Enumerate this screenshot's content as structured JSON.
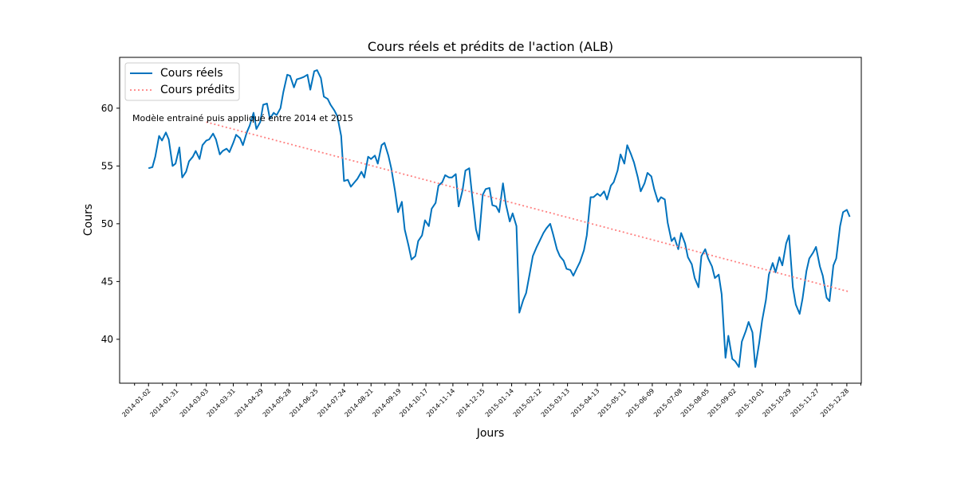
{
  "chart_data": {
    "type": "line",
    "title": "Cours réels et prédits de l'action (ALB)",
    "xlabel": "Jours",
    "ylabel": "Cours",
    "ylim": [
      36.2,
      64.4
    ],
    "yticks": [
      40,
      45,
      50,
      55,
      60
    ],
    "grid": false,
    "legend_position": "top-left",
    "annotation": "Modèle entrainé puis appliqué entre 2014 et 2015",
    "xtick_labels": [
      "2014-01-02",
      "2014-01-31",
      "2014-03-03",
      "2014-03-31",
      "2014-04-29",
      "2014-05-28",
      "2014-06-25",
      "2014-07-24",
      "2014-08-21",
      "2014-09-19",
      "2014-10-17",
      "2014-11-14",
      "2014-12-15",
      "2015-01-14",
      "2015-02-12",
      "2015-03-13",
      "2015-04-13",
      "2015-05-11",
      "2015-06-09",
      "2015-07-08",
      "2015-08-05",
      "2015-09-02",
      "2015-10-01",
      "2015-10-29",
      "2015-11-27",
      "2015-12-28"
    ],
    "series": [
      {
        "name": "Cours réels",
        "color": "#0072bd",
        "style": "solid",
        "points": [
          [
            "2014-01-02",
            54.8
          ],
          [
            "2014-01-06",
            54.9
          ],
          [
            "2014-01-09",
            55.8
          ],
          [
            "2014-01-13",
            57.6
          ],
          [
            "2014-01-16",
            57.2
          ],
          [
            "2014-01-20",
            57.9
          ],
          [
            "2014-01-23",
            57.3
          ],
          [
            "2014-01-27",
            55.0
          ],
          [
            "2014-01-30",
            55.2
          ],
          [
            "2014-02-03",
            56.6
          ],
          [
            "2014-02-06",
            54.0
          ],
          [
            "2014-02-10",
            54.5
          ],
          [
            "2014-02-13",
            55.4
          ],
          [
            "2014-02-17",
            55.8
          ],
          [
            "2014-02-20",
            56.3
          ],
          [
            "2014-02-24",
            55.6
          ],
          [
            "2014-02-27",
            56.8
          ],
          [
            "2014-03-03",
            57.2
          ],
          [
            "2014-03-06",
            57.3
          ],
          [
            "2014-03-10",
            57.8
          ],
          [
            "2014-03-13",
            57.3
          ],
          [
            "2014-03-17",
            56.0
          ],
          [
            "2014-03-20",
            56.3
          ],
          [
            "2014-03-24",
            56.5
          ],
          [
            "2014-03-27",
            56.2
          ],
          [
            "2014-03-31",
            57.0
          ],
          [
            "2014-04-03",
            57.7
          ],
          [
            "2014-04-07",
            57.4
          ],
          [
            "2014-04-10",
            56.8
          ],
          [
            "2014-04-14",
            57.9
          ],
          [
            "2014-04-17",
            58.5
          ],
          [
            "2014-04-21",
            59.6
          ],
          [
            "2014-04-24",
            58.2
          ],
          [
            "2014-04-28",
            58.8
          ],
          [
            "2014-05-01",
            60.3
          ],
          [
            "2014-05-05",
            60.4
          ],
          [
            "2014-05-08",
            59.1
          ],
          [
            "2014-05-12",
            59.6
          ],
          [
            "2014-05-15",
            59.4
          ],
          [
            "2014-05-19",
            60.0
          ],
          [
            "2014-05-22",
            61.4
          ],
          [
            "2014-05-26",
            62.9
          ],
          [
            "2014-05-29",
            62.8
          ],
          [
            "2014-06-02",
            61.8
          ],
          [
            "2014-06-05",
            62.5
          ],
          [
            "2014-06-09",
            62.6
          ],
          [
            "2014-06-12",
            62.7
          ],
          [
            "2014-06-16",
            62.9
          ],
          [
            "2014-06-19",
            61.6
          ],
          [
            "2014-06-23",
            63.2
          ],
          [
            "2014-06-26",
            63.3
          ],
          [
            "2014-06-30",
            62.6
          ],
          [
            "2014-07-03",
            61.0
          ],
          [
            "2014-07-07",
            60.8
          ],
          [
            "2014-07-10",
            60.3
          ],
          [
            "2014-07-14",
            59.8
          ],
          [
            "2014-07-17",
            59.3
          ],
          [
            "2014-07-21",
            57.6
          ],
          [
            "2014-07-24",
            53.7
          ],
          [
            "2014-07-28",
            53.8
          ],
          [
            "2014-07-31",
            53.2
          ],
          [
            "2014-08-04",
            53.6
          ],
          [
            "2014-08-07",
            53.9
          ],
          [
            "2014-08-11",
            54.5
          ],
          [
            "2014-08-14",
            54.0
          ],
          [
            "2014-08-18",
            55.8
          ],
          [
            "2014-08-21",
            55.6
          ],
          [
            "2014-08-25",
            55.9
          ],
          [
            "2014-08-28",
            55.2
          ],
          [
            "2014-09-01",
            56.8
          ],
          [
            "2014-09-04",
            57.0
          ],
          [
            "2014-09-08",
            55.9
          ],
          [
            "2014-09-11",
            54.8
          ],
          [
            "2014-09-15",
            52.8
          ],
          [
            "2014-09-18",
            51.0
          ],
          [
            "2014-09-22",
            51.9
          ],
          [
            "2014-09-25",
            49.5
          ],
          [
            "2014-09-29",
            48.1
          ],
          [
            "2014-10-02",
            46.9
          ],
          [
            "2014-10-06",
            47.2
          ],
          [
            "2014-10-09",
            48.5
          ],
          [
            "2014-10-13",
            49.0
          ],
          [
            "2014-10-16",
            50.3
          ],
          [
            "2014-10-20",
            49.8
          ],
          [
            "2014-10-23",
            51.3
          ],
          [
            "2014-10-27",
            51.8
          ],
          [
            "2014-10-30",
            53.3
          ],
          [
            "2014-11-03",
            53.6
          ],
          [
            "2014-11-06",
            54.2
          ],
          [
            "2014-11-10",
            54.0
          ],
          [
            "2014-11-13",
            54.0
          ],
          [
            "2014-11-17",
            54.3
          ],
          [
            "2014-11-20",
            51.5
          ],
          [
            "2014-11-24",
            52.9
          ],
          [
            "2014-11-27",
            54.6
          ],
          [
            "2014-12-01",
            54.8
          ],
          [
            "2014-12-04",
            52.4
          ],
          [
            "2014-12-08",
            49.5
          ],
          [
            "2014-12-11",
            48.6
          ],
          [
            "2014-12-15",
            52.5
          ],
          [
            "2014-12-18",
            53.0
          ],
          [
            "2014-12-22",
            53.1
          ],
          [
            "2014-12-25",
            51.6
          ],
          [
            "2014-12-29",
            51.5
          ],
          [
            "2015-01-01",
            51.0
          ],
          [
            "2015-01-05",
            53.5
          ],
          [
            "2015-01-08",
            51.7
          ],
          [
            "2015-01-12",
            50.2
          ],
          [
            "2015-01-15",
            50.9
          ],
          [
            "2015-01-19",
            49.8
          ],
          [
            "2015-01-22",
            42.3
          ],
          [
            "2015-01-26",
            43.4
          ],
          [
            "2015-01-29",
            44.0
          ],
          [
            "2015-02-02",
            45.8
          ],
          [
            "2015-02-05",
            47.2
          ],
          [
            "2015-02-09",
            48.0
          ],
          [
            "2015-02-12",
            48.5
          ],
          [
            "2015-02-16",
            49.2
          ],
          [
            "2015-02-19",
            49.6
          ],
          [
            "2015-02-23",
            50.0
          ],
          [
            "2015-02-26",
            49.1
          ],
          [
            "2015-03-02",
            47.8
          ],
          [
            "2015-03-05",
            47.2
          ],
          [
            "2015-03-09",
            46.8
          ],
          [
            "2015-03-12",
            46.1
          ],
          [
            "2015-03-16",
            46.0
          ],
          [
            "2015-03-19",
            45.5
          ],
          [
            "2015-03-23",
            46.2
          ],
          [
            "2015-03-26",
            46.7
          ],
          [
            "2015-03-30",
            47.7
          ],
          [
            "2015-04-02",
            49.0
          ],
          [
            "2015-04-06",
            52.3
          ],
          [
            "2015-04-09",
            52.3
          ],
          [
            "2015-04-13",
            52.6
          ],
          [
            "2015-04-16",
            52.4
          ],
          [
            "2015-04-20",
            52.8
          ],
          [
            "2015-04-23",
            52.1
          ],
          [
            "2015-04-27",
            53.3
          ],
          [
            "2015-04-30",
            53.6
          ],
          [
            "2015-05-04",
            54.6
          ],
          [
            "2015-05-07",
            56.0
          ],
          [
            "2015-05-11",
            55.2
          ],
          [
            "2015-05-14",
            56.8
          ],
          [
            "2015-05-18",
            56.0
          ],
          [
            "2015-05-21",
            55.3
          ],
          [
            "2015-05-25",
            54.0
          ],
          [
            "2015-05-28",
            52.8
          ],
          [
            "2015-06-01",
            53.5
          ],
          [
            "2015-06-04",
            54.4
          ],
          [
            "2015-06-08",
            54.1
          ],
          [
            "2015-06-11",
            53.0
          ],
          [
            "2015-06-15",
            51.9
          ],
          [
            "2015-06-18",
            52.3
          ],
          [
            "2015-06-22",
            52.1
          ],
          [
            "2015-06-25",
            50.1
          ],
          [
            "2015-06-29",
            48.5
          ],
          [
            "2015-07-02",
            48.8
          ],
          [
            "2015-07-06",
            47.8
          ],
          [
            "2015-07-09",
            49.2
          ],
          [
            "2015-07-13",
            48.3
          ],
          [
            "2015-07-16",
            47.1
          ],
          [
            "2015-07-20",
            46.5
          ],
          [
            "2015-07-23",
            45.3
          ],
          [
            "2015-07-27",
            44.5
          ],
          [
            "2015-07-30",
            47.2
          ],
          [
            "2015-08-03",
            47.8
          ],
          [
            "2015-08-06",
            47.0
          ],
          [
            "2015-08-10",
            46.3
          ],
          [
            "2015-08-13",
            45.3
          ],
          [
            "2015-08-17",
            45.6
          ],
          [
            "2015-08-20",
            43.9
          ],
          [
            "2015-08-24",
            38.4
          ],
          [
            "2015-08-27",
            40.3
          ],
          [
            "2015-08-31",
            38.3
          ],
          [
            "2015-09-03",
            38.1
          ],
          [
            "2015-09-07",
            37.6
          ],
          [
            "2015-09-10",
            39.8
          ],
          [
            "2015-09-14",
            40.7
          ],
          [
            "2015-09-17",
            41.5
          ],
          [
            "2015-09-21",
            40.6
          ],
          [
            "2015-09-24",
            37.6
          ],
          [
            "2015-09-28",
            39.7
          ],
          [
            "2015-10-01",
            41.6
          ],
          [
            "2015-10-05",
            43.4
          ],
          [
            "2015-10-08",
            45.6
          ],
          [
            "2015-10-12",
            46.6
          ],
          [
            "2015-10-15",
            45.8
          ],
          [
            "2015-10-19",
            47.1
          ],
          [
            "2015-10-22",
            46.4
          ],
          [
            "2015-10-26",
            48.3
          ],
          [
            "2015-10-29",
            49.0
          ],
          [
            "2015-11-02",
            44.5
          ],
          [
            "2015-11-05",
            43.0
          ],
          [
            "2015-11-09",
            42.2
          ],
          [
            "2015-11-12",
            43.5
          ],
          [
            "2015-11-16",
            45.9
          ],
          [
            "2015-11-19",
            47.0
          ],
          [
            "2015-11-23",
            47.5
          ],
          [
            "2015-11-26",
            48.0
          ],
          [
            "2015-11-30",
            46.3
          ],
          [
            "2015-12-03",
            45.5
          ],
          [
            "2015-12-07",
            43.6
          ],
          [
            "2015-12-10",
            43.3
          ],
          [
            "2015-12-14",
            46.4
          ],
          [
            "2015-12-17",
            47.0
          ],
          [
            "2015-12-21",
            49.8
          ],
          [
            "2015-12-24",
            51.0
          ],
          [
            "2015-12-28",
            51.2
          ],
          [
            "2015-12-31",
            50.6
          ]
        ]
      },
      {
        "name": "Cours prédits",
        "color": "#ff8080",
        "style": "dotted",
        "points": [
          [
            "2014-03-03",
            58.8
          ],
          [
            "2015-12-31",
            44.1
          ]
        ]
      }
    ]
  }
}
